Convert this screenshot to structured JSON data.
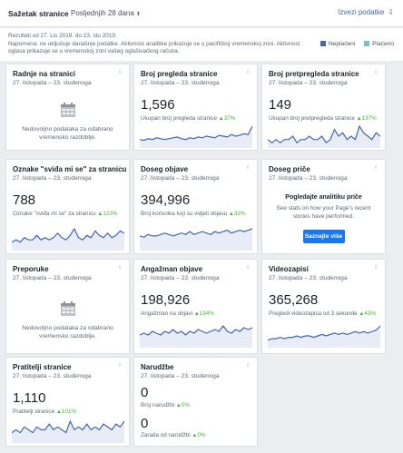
{
  "header": {
    "title": "Sažetak stranice",
    "range": "Posljednjih 28 dana",
    "range_chevron": "⬍",
    "export": "Izvezi podatke",
    "export_icon": "⇩"
  },
  "note": {
    "line1": "Rezultati od 27. Lis 2019. do 23. stu 2019.",
    "line2": "Napomena: ne uključuje današnje podatke. Aktivnost analitike prikazuje se u pacifičkoj vremenskoj zoni. Aktivnost oglasa prikazuje se u vremenskoj zoni vašeg oglašivačkog računa."
  },
  "legend": {
    "paid": "Plaćeno",
    "unpaid": "Neplaćeni",
    "paid_color": "#78c7b9",
    "unpaid_color": "#4267b2"
  },
  "date_range": "27. listopada – 23. studenoga",
  "info_icon": "i",
  "cards": {
    "actions": {
      "title": "Radnje na stranici",
      "empty": "Nedovoljno podataka za odabrano vremensko razdoblje."
    },
    "page_views": {
      "title": "Broj pregleda stranice",
      "value": "1,596",
      "sub": "Ukupan broj pregleda stranice",
      "pct": "37%",
      "series": [
        8,
        7,
        9,
        8,
        10,
        9,
        8,
        9,
        10,
        11,
        9,
        8,
        10,
        9,
        11,
        10,
        12,
        11,
        10,
        13,
        12,
        11,
        14,
        12,
        13,
        15,
        14,
        24
      ]
    },
    "page_previews": {
      "title": "Broj pretpregleda stranice",
      "value": "149",
      "sub": "Ukupan broj pretpregleda stranice",
      "pct": "137%",
      "series": [
        2,
        1,
        2,
        1,
        2,
        2,
        3,
        1,
        2,
        2,
        3,
        2,
        2,
        3,
        1,
        2,
        5,
        3,
        4,
        2,
        3,
        2,
        6,
        4,
        3,
        2,
        4,
        3
      ]
    },
    "likes": {
      "title": "Oznake \"sviđa mi se\" za stranicu",
      "value": "788",
      "sub": "Oznake \"sviđa mi se\" za stranicu",
      "pct": "123%",
      "series": [
        3,
        4,
        3,
        5,
        4,
        4,
        6,
        4,
        5,
        4,
        5,
        7,
        5,
        4,
        6,
        9,
        5,
        4,
        6,
        5,
        8,
        6,
        5,
        7,
        5,
        6,
        8,
        7
      ]
    },
    "post_reach": {
      "title": "Doseg objave",
      "value": "394,996",
      "sub": "Broj korisnika koji su vidjeli objavu",
      "pct": "32%",
      "series": [
        9,
        8,
        10,
        9,
        9,
        10,
        11,
        10,
        9,
        10,
        11,
        10,
        12,
        10,
        11,
        12,
        11,
        10,
        12,
        11,
        12,
        13,
        11,
        12,
        13,
        12,
        13,
        14
      ]
    },
    "story_reach": {
      "title": "Doseg priče",
      "cta_title": "Pogledajte analitiku priče",
      "cta_text": "See stats on how your Page's recent stories have performed.",
      "cta_button": "Saznajte više"
    },
    "recommendations": {
      "title": "Preporuke",
      "empty": "Nedovoljno podataka za odabrano vremensko razdoblje."
    },
    "engagement": {
      "title": "Angažman objave",
      "value": "198,926",
      "sub": "Angažman na objavi",
      "pct": "134%",
      "series": [
        6,
        7,
        6,
        8,
        7,
        6,
        8,
        7,
        9,
        7,
        8,
        6,
        8,
        7,
        9,
        8,
        7,
        8,
        9,
        8,
        11,
        8,
        7,
        9,
        8,
        10,
        9,
        10
      ]
    },
    "videos": {
      "title": "Videozapisi",
      "value": "365,268",
      "sub": "Pregledi videozapisa od 3 sekunde",
      "pct": "43%",
      "series": [
        4,
        5,
        5,
        6,
        5,
        6,
        6,
        7,
        6,
        7,
        7,
        6,
        7,
        8,
        7,
        8,
        9,
        8,
        9,
        8,
        9,
        10,
        9,
        10,
        9,
        10,
        11,
        14
      ]
    },
    "followers": {
      "title": "Pratitelji stranice",
      "value": "1,110",
      "sub": "Pratitelji stranice",
      "pct": "101%",
      "series": [
        3,
        4,
        3,
        5,
        4,
        3,
        5,
        4,
        4,
        6,
        4,
        5,
        4,
        3,
        7,
        4,
        5,
        4,
        6,
        4,
        5,
        4,
        6,
        5,
        4,
        6,
        5,
        7
      ]
    },
    "orders": {
      "title": "Narudžbe",
      "value1": "0",
      "sub1": "Broj narudžbi",
      "pct1": "0%",
      "value2": "0",
      "sub2": "Zarada od narudžbi",
      "pct2": "0%"
    }
  }
}
